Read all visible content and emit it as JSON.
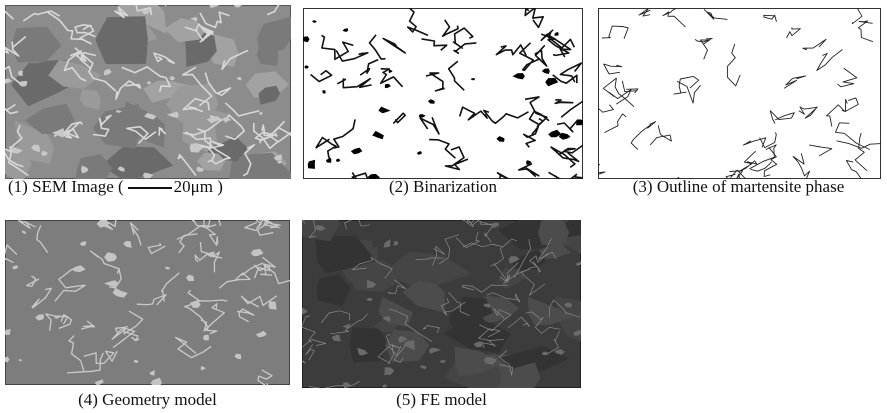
{
  "panels": [
    {
      "caption": "(1) SEM Image (",
      "scale_label": "20μm )"
    },
    {
      "caption": "(2) Binarization"
    },
    {
      "caption": "(3) Outline of martensite phase"
    },
    {
      "caption": "(4) Geometry model"
    },
    {
      "caption": "(5) FE model"
    }
  ]
}
